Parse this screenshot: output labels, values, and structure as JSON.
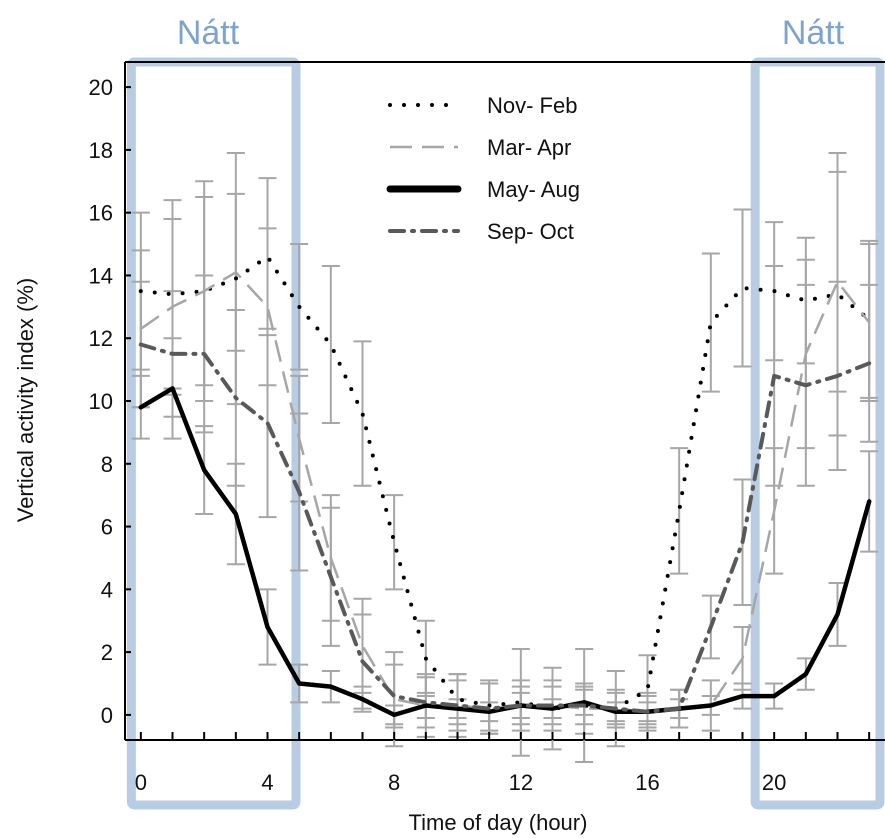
{
  "colors": {
    "night_box": "#b8cce4",
    "night_text": "#7da3cf",
    "axis": "#000000",
    "nov_feb": "#000000",
    "mar_apr": "#a6a6a6",
    "may_aug": "#000000",
    "sep_oct": "#595959",
    "error_bar": "#a6a6a6"
  },
  "annotations": {
    "night_left": "Nátt",
    "night_right": "Nátt"
  },
  "chart_data": {
    "type": "line",
    "xlabel": "Time of day (hour)",
    "ylabel": "Vertical activity index (%)",
    "xlim": [
      -0.5,
      23.5
    ],
    "ylim": [
      -0.8,
      20.8
    ],
    "x_ticks": [
      0,
      4,
      8,
      12,
      16,
      20
    ],
    "y_ticks": [
      0,
      2,
      4,
      6,
      8,
      10,
      12,
      14,
      16,
      18,
      20
    ],
    "grid": false,
    "legend_position": "top-center",
    "night_periods": [
      [
        -0.3,
        4.9
      ],
      [
        19.4,
        23.5
      ]
    ],
    "x": [
      0,
      1,
      2,
      3,
      4,
      5,
      6,
      7,
      8,
      9,
      10,
      11,
      12,
      13,
      14,
      15,
      16,
      17,
      18,
      19,
      20,
      21,
      22,
      23
    ],
    "series": [
      {
        "name": "Nov- Feb",
        "style": "dotted",
        "values": [
          13.5,
          13.4,
          13.5,
          13.9,
          14.6,
          13.0,
          11.8,
          9.6,
          5.5,
          1.8,
          0.5,
          0.3,
          0.4,
          0.2,
          0.3,
          0.2,
          0.8,
          6.5,
          12.5,
          13.6,
          13.5,
          13.2,
          13.4,
          12.6
        ],
        "error": [
          2.5,
          3.0,
          3.5,
          4.0,
          2.5,
          2.0,
          2.5,
          2.3,
          1.5,
          1.2,
          0.8,
          0.8,
          1.7,
          1.3,
          1.8,
          1.2,
          1.1,
          2.0,
          2.2,
          2.5,
          2.2,
          2.0,
          4.5,
          2.5
        ]
      },
      {
        "name": "Mar- Apr",
        "style": "dashed",
        "values": [
          12.3,
          13.0,
          13.5,
          14.1,
          13.0,
          8.8,
          5.0,
          2.2,
          0.5,
          0.3,
          0.3,
          0.2,
          0.3,
          0.3,
          0.2,
          0.2,
          0.1,
          0.2,
          0.3,
          1.8,
          6.5,
          11.5,
          13.8,
          12.5
        ],
        "error": [
          2.5,
          2.8,
          3.0,
          2.5,
          2.5,
          2.0,
          2.0,
          1.5,
          1.5,
          1.0,
          1.0,
          0.8,
          0.8,
          0.8,
          0.8,
          0.6,
          0.6,
          0.6,
          0.8,
          1.0,
          2.0,
          3.0,
          3.5,
          2.5
        ]
      },
      {
        "name": "May- Aug",
        "style": "solid",
        "values": [
          9.8,
          10.4,
          7.8,
          6.4,
          2.8,
          1.0,
          0.9,
          0.5,
          0.0,
          0.3,
          0.2,
          0.1,
          0.3,
          0.2,
          0.4,
          0.1,
          0.1,
          0.2,
          0.3,
          0.6,
          0.6,
          1.3,
          3.2,
          6.8
        ],
        "error": [
          1.0,
          1.6,
          1.4,
          1.6,
          1.2,
          0.6,
          0.5,
          0.4,
          0.3,
          0.4,
          0.3,
          0.3,
          0.4,
          0.3,
          0.4,
          0.3,
          0.3,
          0.3,
          0.3,
          0.4,
          0.4,
          0.5,
          1.0,
          1.6
        ]
      },
      {
        "name": "Sep- Oct",
        "style": "dashdot",
        "values": [
          11.8,
          11.5,
          11.5,
          10.1,
          9.3,
          7.1,
          4.4,
          1.7,
          0.6,
          0.4,
          0.3,
          0.2,
          0.3,
          0.3,
          0.3,
          0.2,
          0.1,
          0.2,
          2.8,
          5.5,
          10.8,
          10.5,
          10.8,
          11.2
        ],
        "error": [
          2.0,
          2.0,
          2.5,
          2.8,
          3.0,
          2.5,
          2.2,
          1.5,
          1.0,
          0.8,
          0.8,
          0.8,
          0.6,
          0.6,
          0.6,
          0.5,
          0.5,
          0.6,
          1.0,
          2.0,
          3.5,
          3.2,
          3.0,
          2.5
        ]
      }
    ]
  }
}
